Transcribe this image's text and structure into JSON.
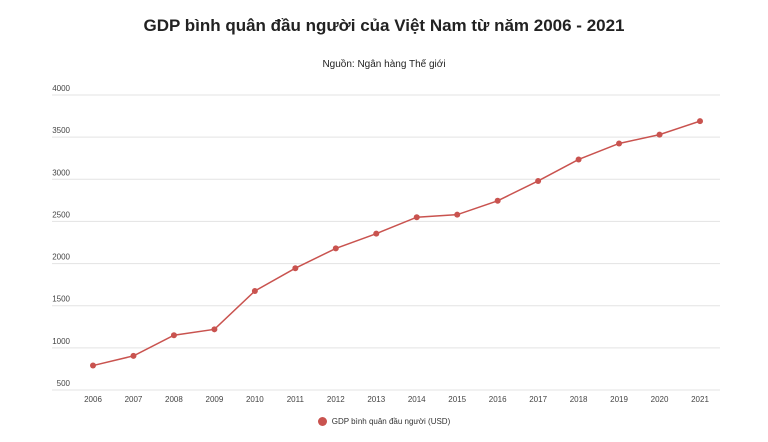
{
  "chart_data": {
    "type": "line",
    "title": "GDP bình quân đầu người của Việt Nam từ năm 2006 - 2021",
    "subtitle": "Nguồn: Ngân hàng Thế giới",
    "categories": [
      "2006",
      "2007",
      "2008",
      "2009",
      "2010",
      "2011",
      "2012",
      "2013",
      "2014",
      "2015",
      "2016",
      "2017",
      "2018",
      "2019",
      "2020",
      "2021"
    ],
    "series": [
      {
        "name": "GDP bình quân đầu người (USD)",
        "color": "#c9534f",
        "values": [
          790,
          905,
          1150,
          1220,
          1675,
          1945,
          2180,
          2355,
          2550,
          2580,
          2745,
          2980,
          3235,
          3425,
          3530,
          3690
        ]
      }
    ],
    "ylim": [
      500,
      4000
    ],
    "yticks": [
      "500",
      "1000",
      "1500",
      "2000",
      "2500",
      "3000",
      "3500",
      "4000"
    ],
    "grid": true,
    "legend": "bottom"
  }
}
